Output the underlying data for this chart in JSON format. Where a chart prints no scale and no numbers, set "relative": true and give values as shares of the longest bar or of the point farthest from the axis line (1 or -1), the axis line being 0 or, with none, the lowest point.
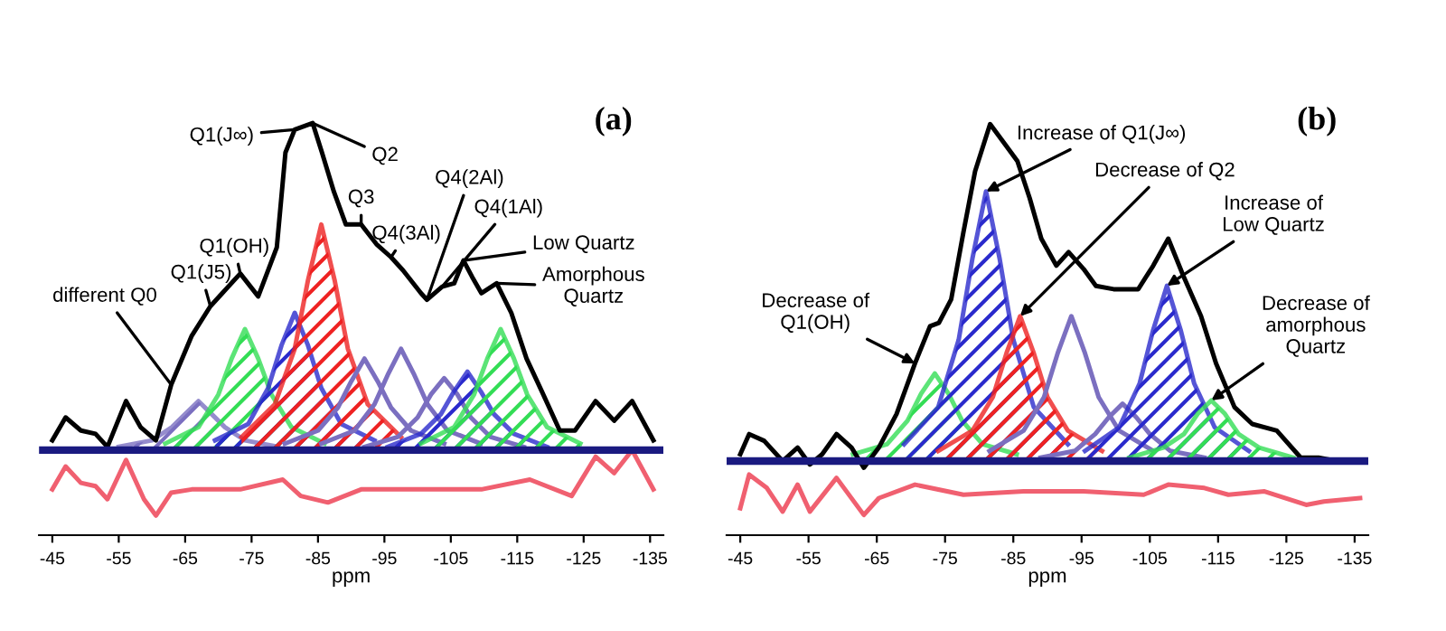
{
  "chart_data": [
    {
      "type": "line",
      "title": "(a)",
      "xlabel": "ppm",
      "relative": true,
      "xlim": [
        -43,
        -137
      ],
      "xticks": [
        -45,
        -55,
        -65,
        -75,
        -85,
        -95,
        -105,
        -115,
        -125,
        -135
      ],
      "grid": false,
      "legend": false,
      "marker": "none",
      "line_style": "solid",
      "series": [
        {
          "type": "area",
          "color": "#7b6fc0",
          "x": [
            -55,
            -60,
            -63,
            -65,
            -67,
            -69,
            -71,
            -74,
            -79
          ],
          "values": [
            0.01,
            0.03,
            0.07,
            0.11,
            0.15,
            0.11,
            0.07,
            0.03,
            0.01
          ]
        },
        {
          "type": "area",
          "color": "#33dd55",
          "x": [
            -62,
            -67,
            -70,
            -72,
            -74,
            -76,
            -78,
            -81,
            -86
          ],
          "values": [
            0.02,
            0.07,
            0.17,
            0.28,
            0.37,
            0.28,
            0.17,
            0.07,
            0.02
          ]
        },
        {
          "type": "area",
          "color": "#2a2acc",
          "x": [
            -69.5,
            -74.5,
            -77.5,
            -79.5,
            -81.5,
            -83.5,
            -85.5,
            -88.5,
            -93.5
          ],
          "values": [
            0.03,
            0.08,
            0.19,
            0.32,
            0.42,
            0.32,
            0.19,
            0.08,
            0.03
          ]
        },
        {
          "type": "area",
          "color": "#ee2222",
          "x": [
            -73.5,
            -78.5,
            -81.5,
            -83.5,
            -85.5,
            -87.5,
            -89.5,
            -92.5,
            -97.5
          ],
          "values": [
            0.04,
            0.14,
            0.31,
            0.52,
            0.69,
            0.52,
            0.31,
            0.14,
            0.04
          ]
        },
        {
          "color": "#7b6fc0",
          "x": [
            -80,
            -85,
            -88,
            -90,
            -92,
            -94,
            -96,
            -99,
            -104
          ],
          "values": [
            0.02,
            0.06,
            0.13,
            0.21,
            0.28,
            0.21,
            0.13,
            0.06,
            0.02
          ]
        },
        {
          "color": "#7b6fc0",
          "x": [
            -85.5,
            -90.5,
            -93.5,
            -95.5,
            -97.5,
            -99.5,
            -101.5,
            -104.5,
            -109.5
          ],
          "values": [
            0.02,
            0.06,
            0.14,
            0.23,
            0.31,
            0.23,
            0.14,
            0.06,
            0.02
          ]
        },
        {
          "color": "#7b6fc0",
          "x": [
            -92,
            -97,
            -100,
            -102,
            -104,
            -106,
            -108,
            -111,
            -116
          ],
          "values": [
            0.01,
            0.04,
            0.1,
            0.17,
            0.22,
            0.17,
            0.1,
            0.04,
            0.01
          ]
        },
        {
          "type": "area",
          "color": "#2a2acc",
          "x": [
            -95.5,
            -100.5,
            -103.5,
            -105.5,
            -107.5,
            -109.5,
            -111.5,
            -114.5,
            -119.5
          ],
          "values": [
            0.01,
            0.05,
            0.11,
            0.18,
            0.24,
            0.18,
            0.11,
            0.05,
            0.01
          ]
        },
        {
          "type": "area",
          "color": "#33dd55",
          "x": [
            -100.5,
            -105.5,
            -108.5,
            -110.5,
            -112.5,
            -114.5,
            -116.5,
            -119.5,
            -124.5
          ],
          "values": [
            0.02,
            0.07,
            0.17,
            0.28,
            0.37,
            0.28,
            0.17,
            0.07,
            0.02
          ]
        },
        {
          "color": "#000000",
          "x": [
            -45,
            -47,
            -49.3,
            -51.5,
            -53.3,
            -56.1,
            -58.3,
            -60.6,
            -62.9,
            -66,
            -68.8,
            -70.6,
            -73.3,
            -76,
            -78.8,
            -80.1,
            -81.5,
            -84.2,
            -85.6,
            -87.4,
            -89.2,
            -91.5,
            -93.8,
            -96,
            -97.8,
            -100.5,
            -101.4,
            -103.7,
            -105.5,
            -106.9,
            -108.2,
            -109.6,
            -111.9,
            -114.1,
            -116.4,
            -118.7,
            -121.4,
            -123.7,
            -126.8,
            -129.6,
            -132.3,
            -135.5
          ],
          "values": [
            0.03,
            0.1,
            0.06,
            0.05,
            0.01,
            0.15,
            0.07,
            0.03,
            0.2,
            0.35,
            0.44,
            0.48,
            0.54,
            0.47,
            0.62,
            0.91,
            0.98,
            1.0,
            0.91,
            0.79,
            0.69,
            0.69,
            0.63,
            0.59,
            0.55,
            0.48,
            0.46,
            0.5,
            0.51,
            0.58,
            0.53,
            0.48,
            0.51,
            0.42,
            0.28,
            0.18,
            0.06,
            0.06,
            0.15,
            0.09,
            0.15,
            0.03
          ]
        },
        {
          "color": "#f06070",
          "x": [
            -45,
            -47,
            -49.3,
            -51.5,
            -53.3,
            -56.1,
            -58.8,
            -60.6,
            -62.9,
            -66,
            -73.3,
            -79.7,
            -82.4,
            -86.5,
            -91.5,
            -100.5,
            -109.6,
            -116.9,
            -123.2,
            -126.8,
            -129.6,
            -132.3,
            -135.5
          ],
          "values": [
            -0.12,
            -0.05,
            -0.1,
            -0.11,
            -0.15,
            -0.03,
            -0.15,
            -0.2,
            -0.13,
            -0.12,
            -0.12,
            -0.09,
            -0.14,
            -0.16,
            -0.12,
            -0.12,
            -0.12,
            -0.09,
            -0.14,
            -0.02,
            -0.07,
            0.0,
            -0.12
          ]
        }
      ],
      "ref_lines": [
        {
          "axis": "y",
          "value": 0,
          "color": "#1a1a80"
        }
      ],
      "annotations": [
        {
          "text": "different Q0",
          "x": -62.9,
          "y": 0.2
        },
        {
          "text": "Q1(J5)",
          "x": -68.8,
          "y": 0.44
        },
        {
          "text": "Q1(OH)",
          "x": -73.3,
          "y": 0.54
        },
        {
          "text": "Q1(J∞)",
          "x": -81.5,
          "y": 0.98
        },
        {
          "text": "Q2",
          "x": -84.2,
          "y": 1.0
        },
        {
          "text": "Q3",
          "x": -91.5,
          "y": 0.69
        },
        {
          "text": "Q4(3Al)",
          "x": -96,
          "y": 0.59
        },
        {
          "text": "Q4(2Al)",
          "x": -101.4,
          "y": 0.46
        },
        {
          "text": "Q4(1Al)",
          "x": -103.7,
          "y": 0.5
        },
        {
          "text": "Low Quartz",
          "x": -106.9,
          "y": 0.58
        },
        {
          "text": "Amorphous\nQuartz",
          "x": -111.9,
          "y": 0.51
        }
      ]
    },
    {
      "type": "line",
      "title": "(b)",
      "xlabel": "ppm",
      "relative": true,
      "xlim": [
        -43,
        -137
      ],
      "xticks": [
        -45,
        -55,
        -65,
        -75,
        -85,
        -95,
        -105,
        -115,
        -125,
        -135
      ],
      "grid": false,
      "legend": false,
      "marker": "none",
      "line_style": "solid",
      "series": [
        {
          "type": "area",
          "color": "#33dd55",
          "x": [
            -61.5,
            -66.5,
            -69.5,
            -71.5,
            -73.5,
            -75.5,
            -77.5,
            -80.5,
            -85.5
          ],
          "values": [
            0.02,
            0.05,
            0.12,
            0.2,
            0.26,
            0.2,
            0.12,
            0.05,
            0.02
          ]
        },
        {
          "type": "area",
          "color": "#2a2acc",
          "x": [
            -69,
            -74,
            -77,
            -79,
            -81,
            -83,
            -85,
            -88,
            -93
          ],
          "values": [
            0.05,
            0.16,
            0.36,
            0.6,
            0.8,
            0.6,
            0.36,
            0.16,
            0.05
          ]
        },
        {
          "type": "area",
          "color": "#ee2222",
          "x": [
            -74,
            -79,
            -82,
            -84,
            -86,
            -88,
            -90,
            -93,
            -98
          ],
          "values": [
            0.03,
            0.09,
            0.19,
            0.32,
            0.43,
            0.32,
            0.19,
            0.09,
            0.03
          ]
        },
        {
          "color": "#7b6fc0",
          "x": [
            -81.5,
            -86.5,
            -89.5,
            -91.5,
            -93.5,
            -95.5,
            -97.5,
            -100.5,
            -105.5
          ],
          "values": [
            0.03,
            0.09,
            0.19,
            0.32,
            0.43,
            0.32,
            0.19,
            0.09,
            0.03
          ]
        },
        {
          "color": "#7b6fc0",
          "x": [
            -89,
            -94,
            -97,
            -99,
            -101,
            -103,
            -105,
            -108,
            -113
          ],
          "values": [
            0.01,
            0.03,
            0.08,
            0.13,
            0.17,
            0.13,
            0.08,
            0.03,
            0.01
          ]
        },
        {
          "type": "area",
          "color": "#2a2acc",
          "x": [
            -95.5,
            -100.5,
            -103.5,
            -105.5,
            -107.5,
            -109.5,
            -111.5,
            -114.5,
            -119.5
          ],
          "values": [
            0.03,
            0.1,
            0.23,
            0.39,
            0.52,
            0.39,
            0.23,
            0.1,
            0.03
          ]
        },
        {
          "type": "area",
          "color": "#33dd55",
          "x": [
            -102,
            -107,
            -110,
            -112,
            -114,
            -116,
            -118,
            -121,
            -126
          ],
          "values": [
            0.01,
            0.04,
            0.08,
            0.14,
            0.18,
            0.14,
            0.08,
            0.04,
            0.01
          ]
        },
        {
          "color": "#000000",
          "x": [
            -45,
            -46.3,
            -48.5,
            -51.2,
            -53.4,
            -55.2,
            -57,
            -59.1,
            -61.3,
            -63.1,
            -65.3,
            -67.9,
            -70.6,
            -72.8,
            -74.1,
            -75.9,
            -77.7,
            -79.4,
            -81.6,
            -83.8,
            -85.6,
            -87.4,
            -89.1,
            -91.3,
            -93.1,
            -95.3,
            -97.1,
            -99.7,
            -103.3,
            -105.5,
            -107.7,
            -109.9,
            -112.5,
            -114.7,
            -117.4,
            -120,
            -123.6,
            -127.1,
            -129.7,
            -132.4,
            -136
          ],
          "values": [
            0.02,
            0.08,
            0.06,
            0.0,
            0.04,
            -0.01,
            0.02,
            0.08,
            0.04,
            -0.02,
            0.04,
            0.14,
            0.29,
            0.4,
            0.41,
            0.48,
            0.68,
            0.86,
            1.0,
            0.94,
            0.89,
            0.78,
            0.66,
            0.58,
            0.62,
            0.57,
            0.52,
            0.51,
            0.51,
            0.58,
            0.66,
            0.55,
            0.43,
            0.29,
            0.16,
            0.11,
            0.09,
            0.01,
            0.01,
            0.0,
            0.0
          ]
        },
        {
          "color": "#f06070",
          "x": [
            -45,
            -46.3,
            -48.9,
            -51.2,
            -53.4,
            -55.2,
            -59.1,
            -63.1,
            -65.3,
            -70.6,
            -77.7,
            -86.5,
            -95.3,
            -104.1,
            -107.7,
            -113,
            -116.5,
            -121.8,
            -127.9,
            -130.5,
            -135.8
          ],
          "values": [
            -0.14,
            -0.04,
            -0.08,
            -0.15,
            -0.07,
            -0.15,
            -0.05,
            -0.16,
            -0.11,
            -0.07,
            -0.1,
            -0.09,
            -0.09,
            -0.1,
            -0.07,
            -0.08,
            -0.1,
            -0.09,
            -0.13,
            -0.12,
            -0.11
          ]
        }
      ],
      "ref_lines": [
        {
          "axis": "y",
          "value": 0,
          "color": "#1a1a80"
        }
      ],
      "annotations": [
        {
          "text": "Increase of Q1(J∞)",
          "x": -81,
          "y": 0.8
        },
        {
          "text": "Decrease of Q2",
          "x": -86,
          "y": 0.43
        },
        {
          "text": "Increase of\nLow Quartz",
          "x": -107.5,
          "y": 0.52
        },
        {
          "text": "Decrease of\nQ1(OH)",
          "x": -70.6,
          "y": 0.29
        },
        {
          "text": "Decrease of\namorphous\nQuartz",
          "x": -114,
          "y": 0.18
        }
      ]
    }
  ]
}
